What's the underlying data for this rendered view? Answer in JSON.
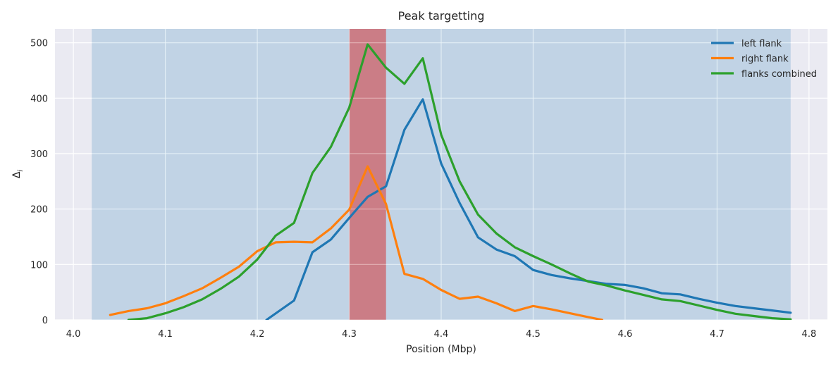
{
  "chart_data": {
    "type": "line",
    "title": "Peak targetting",
    "xlabel": "Position (Mbp)",
    "ylabel": "Δ",
    "ylabel_subscript": "i",
    "xlim": [
      3.98,
      4.82
    ],
    "ylim": [
      0,
      525
    ],
    "xticks": [
      4.0,
      4.1,
      4.2,
      4.3,
      4.4,
      4.5,
      4.6,
      4.7,
      4.8
    ],
    "xtick_labels": [
      "4.0",
      "4.1",
      "4.2",
      "4.3",
      "4.4",
      "4.5",
      "4.6",
      "4.7",
      "4.8"
    ],
    "yticks": [
      0,
      100,
      200,
      300,
      400,
      500
    ],
    "ytick_labels": [
      "0",
      "100",
      "200",
      "300",
      "400",
      "500"
    ],
    "grid": true,
    "legend_position": "top-right",
    "shaded_regions": [
      {
        "x0": 4.02,
        "x1": 4.78,
        "color": "#1f77b4",
        "opacity": 0.2
      },
      {
        "x0": 4.3,
        "x1": 4.34,
        "color": "#d62728",
        "opacity": 0.5
      }
    ],
    "series": [
      {
        "name": "left flank",
        "color": "#1f77b4",
        "x": [
          4.21,
          4.24,
          4.26,
          4.28,
          4.3,
          4.32,
          4.34,
          4.36,
          4.38,
          4.4,
          4.42,
          4.44,
          4.46,
          4.48,
          4.5,
          4.52,
          4.54,
          4.56,
          4.58,
          4.6,
          4.62,
          4.64,
          4.66,
          4.68,
          4.7,
          4.72,
          4.74,
          4.76,
          4.78
        ],
        "y": [
          0,
          35,
          122,
          145,
          184,
          222,
          241,
          343,
          398,
          282,
          211,
          149,
          127,
          115,
          90,
          81,
          75,
          70,
          65,
          63,
          57,
          48,
          46,
          38,
          31,
          25,
          21,
          17,
          13
        ]
      },
      {
        "name": "right flank",
        "color": "#ff7f0e",
        "x": [
          4.04,
          4.06,
          4.08,
          4.1,
          4.12,
          4.14,
          4.16,
          4.18,
          4.2,
          4.22,
          4.24,
          4.26,
          4.28,
          4.3,
          4.32,
          4.34,
          4.36,
          4.38,
          4.4,
          4.42,
          4.44,
          4.46,
          4.48,
          4.5,
          4.52,
          4.54,
          4.56,
          4.575
        ],
        "y": [
          9,
          16,
          21,
          30,
          43,
          57,
          76,
          96,
          124,
          140,
          141,
          140,
          165,
          199,
          277,
          209,
          83,
          74,
          54,
          38,
          42,
          30,
          16,
          25,
          19,
          12,
          5,
          0
        ]
      },
      {
        "name": "flanks combined",
        "color": "#2ca02c",
        "x": [
          4.06,
          4.08,
          4.1,
          4.12,
          4.14,
          4.16,
          4.18,
          4.2,
          4.22,
          4.24,
          4.26,
          4.28,
          4.3,
          4.32,
          4.34,
          4.36,
          4.38,
          4.4,
          4.42,
          4.44,
          4.46,
          4.48,
          4.5,
          4.52,
          4.54,
          4.56,
          4.58,
          4.6,
          4.62,
          4.64,
          4.66,
          4.68,
          4.7,
          4.72,
          4.74,
          4.76,
          4.78
        ],
        "y": [
          0,
          3,
          12,
          23,
          37,
          56,
          78,
          109,
          152,
          175,
          265,
          312,
          383,
          497,
          455,
          426,
          472,
          334,
          250,
          190,
          156,
          131,
          115,
          100,
          84,
          69,
          62,
          53,
          45,
          37,
          34,
          26,
          18,
          11,
          7,
          3,
          1
        ]
      }
    ]
  }
}
